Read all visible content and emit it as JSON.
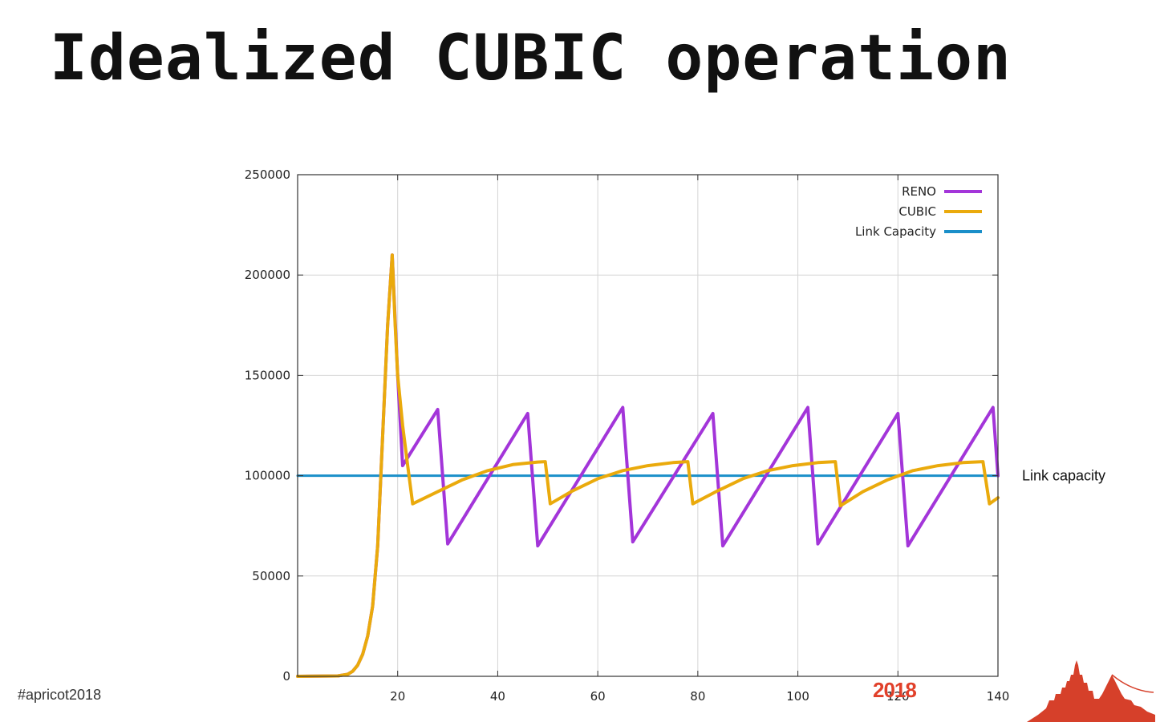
{
  "slide": {
    "title": "Idealized CUBIC operation",
    "hashtag": "#apricot2018",
    "year_badge": "2018",
    "logo_icon": "temple-skyline-logo",
    "accent_color": "#d6402a"
  },
  "chart_data": {
    "type": "line",
    "xlim": [
      0,
      140
    ],
    "ylim": [
      0,
      250000
    ],
    "x_ticks": [
      20,
      40,
      60,
      80,
      100,
      120,
      140
    ],
    "x_tick_labels": [
      "20",
      "40",
      "60",
      "80",
      "100",
      "120",
      "140"
    ],
    "y_ticks": [
      0,
      50000,
      100000,
      150000,
      200000,
      250000
    ],
    "y_tick_labels": [
      "0",
      "50000",
      "100000",
      "150000",
      "200000",
      "250000"
    ],
    "grid": true,
    "legend_position": "top-right",
    "annotations": [
      {
        "text": "Link capacity",
        "x": 140,
        "y": 100000
      }
    ],
    "series": [
      {
        "name": "RENO",
        "color": "#a335d9",
        "points": [
          [
            0,
            0
          ],
          [
            8,
            200
          ],
          [
            10,
            1000
          ],
          [
            11,
            2500
          ],
          [
            12,
            5500
          ],
          [
            13,
            11000
          ],
          [
            14,
            20000
          ],
          [
            15,
            35000
          ],
          [
            16,
            65000
          ],
          [
            17,
            120000
          ],
          [
            18,
            175000
          ],
          [
            18.9,
            210000
          ],
          [
            20,
            150000
          ],
          [
            21,
            105000
          ],
          [
            28,
            133000
          ],
          [
            30,
            66000
          ],
          [
            46,
            131000
          ],
          [
            48,
            65000
          ],
          [
            65,
            134000
          ],
          [
            67,
            67000
          ],
          [
            83,
            131000
          ],
          [
            85,
            65000
          ],
          [
            102,
            134000
          ],
          [
            104,
            66000
          ],
          [
            120,
            131000
          ],
          [
            122,
            65000
          ],
          [
            139,
            134000
          ],
          [
            140,
            100000
          ]
        ]
      },
      {
        "name": "CUBIC",
        "color": "#eaaa0c",
        "points": [
          [
            0,
            0
          ],
          [
            8,
            200
          ],
          [
            10,
            1000
          ],
          [
            11,
            2500
          ],
          [
            12,
            5500
          ],
          [
            13,
            11000
          ],
          [
            14,
            20000
          ],
          [
            15,
            35000
          ],
          [
            16,
            65000
          ],
          [
            17,
            120000
          ],
          [
            18,
            175000
          ],
          [
            18.9,
            210000
          ],
          [
            19.5,
            175000
          ],
          [
            20,
            150000
          ],
          [
            21,
            125000
          ],
          [
            22,
            105000
          ],
          [
            23,
            86000
          ],
          [
            28,
            92000
          ],
          [
            33,
            98000
          ],
          [
            38,
            102500
          ],
          [
            43,
            105500
          ],
          [
            48,
            106800
          ],
          [
            49.5,
            107000
          ],
          [
            50.5,
            86000
          ],
          [
            55,
            92500
          ],
          [
            60,
            98500
          ],
          [
            65,
            102500
          ],
          [
            70,
            105000
          ],
          [
            75,
            106500
          ],
          [
            78,
            107000
          ],
          [
            79,
            86000
          ],
          [
            84,
            92500
          ],
          [
            89,
            98500
          ],
          [
            94,
            102500
          ],
          [
            99,
            105000
          ],
          [
            104,
            106500
          ],
          [
            107.5,
            107000
          ],
          [
            108.5,
            85000
          ],
          [
            113,
            92000
          ],
          [
            118,
            98000
          ],
          [
            123,
            102500
          ],
          [
            128,
            105000
          ],
          [
            133,
            106500
          ],
          [
            137,
            107000
          ],
          [
            138.3,
            86000
          ],
          [
            140,
            89000
          ]
        ]
      },
      {
        "name": "Link Capacity",
        "color": "#1a8fc9",
        "points": [
          [
            0,
            100000
          ],
          [
            140,
            100000
          ]
        ]
      }
    ]
  }
}
